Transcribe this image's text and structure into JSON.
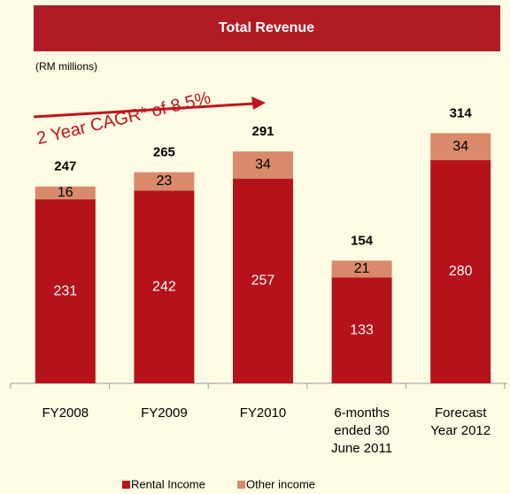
{
  "chart_data": {
    "type": "stacked_bar",
    "title": "Total Revenue",
    "subtitle": "(RM millions)",
    "annotation": "2 Year CAGR* of 8.5%",
    "categories": [
      "FY2008",
      "FY2009",
      "FY2010",
      "6-months\nended 30\nJune 2011",
      "Forecast\nYear 2012"
    ],
    "series": [
      {
        "name": "Rental Income",
        "color": "#b5121b",
        "values": [
          231,
          242,
          257,
          133,
          280
        ]
      },
      {
        "name": "Other income",
        "color": "#d88a6b",
        "values": [
          16,
          23,
          34,
          21,
          34
        ]
      }
    ],
    "totals": [
      247,
      265,
      291,
      154,
      314
    ],
    "ylim": [
      0,
      350
    ]
  }
}
